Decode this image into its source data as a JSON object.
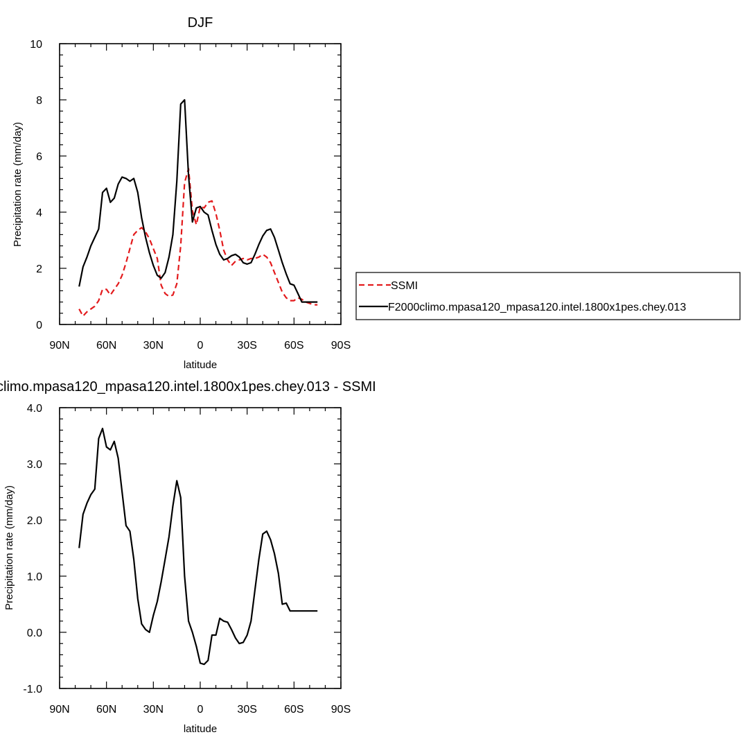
{
  "chart_data": [
    {
      "type": "line",
      "title": "DJF",
      "xlabel": "latitude",
      "ylabel": "Precipitation rate (mm/day)",
      "xlim": [
        90,
        -90
      ],
      "ylim": [
        0,
        10
      ],
      "x_ticks": [
        90,
        60,
        30,
        0,
        -30,
        -60,
        -90
      ],
      "x_tick_labels": [
        "90N",
        "60N",
        "30N",
        "0",
        "30S",
        "60S",
        "90S"
      ],
      "y_ticks": [
        0,
        2,
        4,
        6,
        8,
        10
      ],
      "y_tick_labels": [
        "0",
        "2",
        "4",
        "6",
        "8",
        "10"
      ],
      "legend_position": "right",
      "series": [
        {
          "name": "SSMI",
          "color": "#e31a1c",
          "dash": "dashed",
          "x": [
            77.5,
            75,
            72.5,
            70,
            67.5,
            65,
            62.5,
            60,
            57.5,
            55,
            52.5,
            50,
            47.5,
            45,
            42.5,
            40,
            37.5,
            35,
            32.5,
            30,
            27.5,
            25,
            22.5,
            20,
            17.5,
            15,
            12.5,
            10,
            7.5,
            5,
            2.5,
            0,
            -2.5,
            -5,
            -7.5,
            -10,
            -12.5,
            -15,
            -17.5,
            -20,
            -22.5,
            -25,
            -27.5,
            -30,
            -32.5,
            -35,
            -37.5,
            -40,
            -42.5,
            -45,
            -47.5,
            -50,
            -52.5,
            -55,
            -57.5,
            -60,
            -62.5,
            -65,
            -67.5,
            -70,
            -72.5,
            -75
          ],
          "values": [
            0.55,
            0.3,
            0.45,
            0.55,
            0.65,
            0.85,
            1.25,
            1.25,
            1.05,
            1.25,
            1.45,
            1.75,
            2.2,
            2.7,
            3.2,
            3.35,
            3.45,
            3.3,
            3.05,
            2.7,
            2.35,
            1.4,
            1.1,
            1.0,
            1.05,
            1.45,
            2.8,
            5.05,
            5.55,
            4.05,
            3.55,
            4.2,
            4.15,
            4.35,
            4.4,
            3.95,
            3.35,
            2.65,
            2.3,
            2.1,
            2.25,
            2.3,
            2.35,
            2.3,
            2.35,
            2.35,
            2.4,
            2.5,
            2.4,
            2.2,
            1.85,
            1.5,
            1.15,
            0.95,
            0.85,
            0.85,
            0.95,
            0.9,
            0.8,
            0.75,
            0.7,
            0.7
          ]
        },
        {
          "name": "F2000climo.mpasa120_mpasa120.intel.1800x1pes.chey.013",
          "color": "#000000",
          "dash": "solid",
          "x": [
            77.5,
            75,
            72.5,
            70,
            67.5,
            65,
            62.5,
            60,
            57.5,
            55,
            52.5,
            50,
            47.5,
            45,
            42.5,
            40,
            37.5,
            35,
            32.5,
            30,
            27.5,
            25,
            22.5,
            20,
            17.5,
            15,
            12.5,
            10,
            7.5,
            5,
            2.5,
            0,
            -2.5,
            -5,
            -7.5,
            -10,
            -12.5,
            -15,
            -17.5,
            -20,
            -22.5,
            -25,
            -27.5,
            -30,
            -32.5,
            -35,
            -37.5,
            -40,
            -42.5,
            -45,
            -47.5,
            -50,
            -52.5,
            -55,
            -57.5,
            -60,
            -62.5,
            -65,
            -67.5,
            -70,
            -72.5,
            -75
          ],
          "values": [
            1.35,
            2.05,
            2.4,
            2.8,
            3.1,
            3.4,
            4.7,
            4.85,
            4.35,
            4.5,
            5.0,
            5.25,
            5.2,
            5.1,
            5.2,
            4.7,
            3.8,
            3.1,
            2.55,
            2.1,
            1.75,
            1.65,
            1.85,
            2.4,
            3.2,
            5.1,
            7.85,
            8.0,
            5.3,
            3.65,
            4.15,
            4.2,
            4.0,
            3.9,
            3.35,
            2.85,
            2.5,
            2.3,
            2.35,
            2.45,
            2.5,
            2.4,
            2.2,
            2.15,
            2.2,
            2.5,
            2.85,
            3.15,
            3.35,
            3.4,
            3.1,
            2.65,
            2.2,
            1.8,
            1.45,
            1.4,
            1.1,
            0.8,
            0.8,
            0.8,
            0.8,
            0.8
          ]
        }
      ]
    },
    {
      "type": "line",
      "title": "climo.mpasa120_mpasa120.intel.1800x1pes.chey.013 - SSMI",
      "xlabel": "latitude",
      "ylabel": "Precipitation rate (mm/day)",
      "xlim": [
        90,
        -90
      ],
      "ylim": [
        -1.0,
        4.0
      ],
      "x_ticks": [
        90,
        60,
        30,
        0,
        -30,
        -60,
        -90
      ],
      "x_tick_labels": [
        "90N",
        "60N",
        "30N",
        "0",
        "30S",
        "60S",
        "90S"
      ],
      "y_ticks": [
        -1,
        0,
        1,
        2,
        3,
        4
      ],
      "y_tick_labels": [
        "-1.0",
        "0.0",
        "1.0",
        "2.0",
        "3.0",
        "4.0"
      ],
      "series": [
        {
          "color": "#000000",
          "dash": "solid",
          "x": [
            77.5,
            75,
            72.5,
            70,
            67.5,
            65,
            62.5,
            60,
            57.5,
            55,
            52.5,
            50,
            47.5,
            45,
            42.5,
            40,
            37.5,
            35,
            32.5,
            30,
            27.5,
            25,
            22.5,
            20,
            17.5,
            15,
            12.5,
            10,
            7.5,
            5,
            2.5,
            0,
            -2.5,
            -5,
            -7.5,
            -10,
            -12.5,
            -15,
            -17.5,
            -20,
            -22.5,
            -25,
            -27.5,
            -30,
            -32.5,
            -35,
            -37.5,
            -40,
            -42.5,
            -45,
            -47.5,
            -50,
            -52.5,
            -55,
            -57.5,
            -60,
            -62.5,
            -65,
            -67.5,
            -70,
            -72.5,
            -75
          ],
          "values": [
            1.5,
            2.1,
            2.3,
            2.45,
            2.55,
            3.45,
            3.63,
            3.3,
            3.25,
            3.4,
            3.1,
            2.5,
            1.9,
            1.8,
            1.3,
            0.6,
            0.15,
            0.05,
            0.0,
            0.3,
            0.55,
            0.9,
            1.3,
            1.7,
            2.25,
            2.7,
            2.4,
            1.0,
            0.2,
            0.0,
            -0.25,
            -0.55,
            -0.57,
            -0.5,
            -0.05,
            -0.05,
            0.25,
            0.2,
            0.18,
            0.05,
            -0.1,
            -0.2,
            -0.18,
            -0.05,
            0.2,
            0.75,
            1.3,
            1.75,
            1.8,
            1.65,
            1.4,
            1.05,
            0.5,
            0.52,
            0.38,
            0.38,
            0.38,
            0.38,
            0.38,
            0.38,
            0.38,
            0.38
          ]
        }
      ]
    }
  ]
}
